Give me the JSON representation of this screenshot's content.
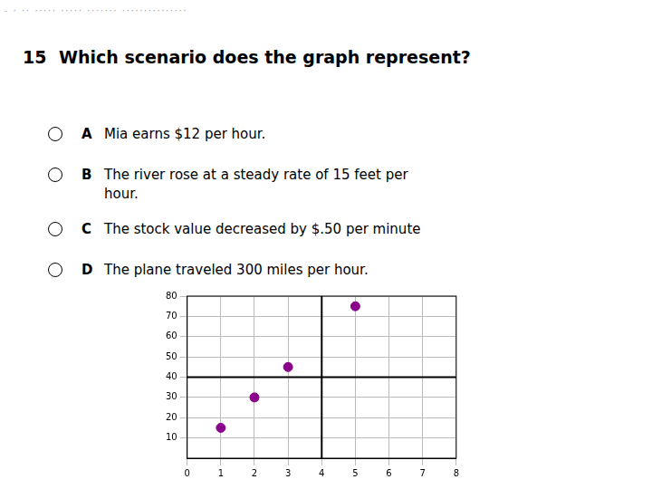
{
  "chart_data": {
    "type": "scatter",
    "title": "Which scenario does the graph represent?",
    "annotations": [
      "- · ·· ····· ····· ······· ···············",
      "15"
    ],
    "options": [
      {
        "letter": "A",
        "text": "Mia earns $12 per hour."
      },
      {
        "letter": "B",
        "text": "The river rose at a steady rate of 15 feet per\nhour."
      },
      {
        "letter": "C",
        "text": "The stock value decreased by $.50 per minute"
      },
      {
        "letter": "D",
        "text": "The plane traveled 300 miles per hour."
      }
    ],
    "x": [
      1,
      2,
      3,
      5
    ],
    "values": [
      15,
      30,
      45,
      75
    ],
    "color": "#8B008B",
    "xlim": [
      0,
      8
    ],
    "ylim": [
      0,
      80
    ],
    "xticks": [
      0,
      1,
      2,
      3,
      4,
      5,
      6,
      7,
      8
    ],
    "yticks": [
      10,
      20,
      30,
      40,
      50,
      60,
      70,
      80
    ],
    "vline": 4,
    "hline": 40,
    "grid": true,
    "tick_labels": true
  }
}
